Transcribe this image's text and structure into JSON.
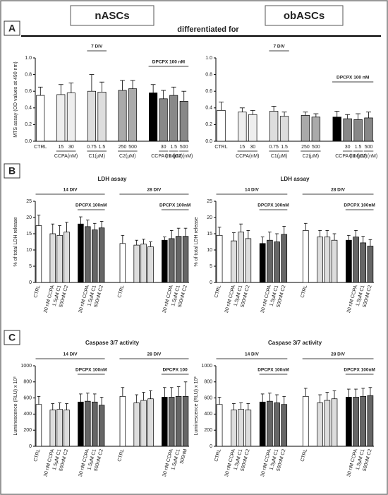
{
  "header": {
    "left": "nASCs",
    "right": "obASCs",
    "subtitle": "differentiated for"
  },
  "panels": [
    "A",
    "B",
    "C"
  ],
  "chart_data": [
    {
      "type": "bar",
      "ylabel": "MTS assay (OD values at 490 nm)",
      "categories": [
        "CTRL",
        null,
        "15",
        "30",
        null,
        "0.75",
        "1.5",
        null,
        "250",
        "500",
        null,
        null,
        "30",
        "1.5",
        "500"
      ],
      "values": [
        0.55,
        null,
        0.56,
        0.58,
        null,
        0.6,
        0.59,
        null,
        0.61,
        0.63,
        null,
        0.58,
        0.51,
        0.55,
        0.48
      ],
      "errors": [
        0.1,
        null,
        0.12,
        0.12,
        null,
        0.2,
        0.12,
        null,
        0.12,
        0.1,
        null,
        0.1,
        0.1,
        0.1,
        0.12
      ],
      "colors": [
        "#ffffff",
        null,
        "#eeeeee",
        "#eeeeee",
        null,
        "#dddddd",
        "#dddddd",
        null,
        "#aaaaaa",
        "#aaaaaa",
        null,
        "#000000",
        "#888888",
        "#888888",
        "#888888"
      ],
      "groups": [
        {
          "label": "CCPA(nM)",
          "span": [
            2,
            3
          ]
        },
        {
          "label": "C1(µM)",
          "span": [
            5,
            6
          ]
        },
        {
          "label": "C2(µM)",
          "span": [
            8,
            9
          ]
        },
        {
          "label": "CCPA (nM)",
          "span": [
            12,
            12
          ]
        },
        {
          "label": "C1 (µM)",
          "span": [
            13,
            13
          ]
        },
        {
          "label": "C2 (nM)",
          "span": [
            14,
            14
          ]
        }
      ],
      "brackets": [
        [
          {
            "label": "7 DIV",
            "span": [
              5,
              6
            ]
          }
        ],
        [
          {
            "label": "DPCPX 100 nM",
            "span": [
              11,
              14
            ]
          }
        ]
      ],
      "ylim": [
        0,
        1
      ],
      "yticks": [
        {
          "value": 0,
          "label": "0.0"
        },
        0.2,
        0.4,
        0.6,
        0.8,
        {
          "value": 1,
          "label": "1.0"
        }
      ]
    },
    {
      "type": "bar",
      "categories": [
        "CTRL",
        null,
        "15",
        "30",
        null,
        "0.75",
        "1.5",
        null,
        "250",
        "500",
        null,
        null,
        "30",
        "1.5",
        "500"
      ],
      "values": [
        0.37,
        null,
        0.35,
        0.32,
        null,
        0.36,
        0.3,
        null,
        0.31,
        0.29,
        null,
        0.29,
        0.27,
        0.26,
        0.28
      ],
      "errors": [
        0.1,
        null,
        0.05,
        0.05,
        null,
        0.06,
        0.05,
        null,
        0.04,
        0.04,
        null,
        0.07,
        0.05,
        0.07,
        0.07
      ],
      "colors": [
        "#ffffff",
        null,
        "#eeeeee",
        "#eeeeee",
        null,
        "#dddddd",
        "#dddddd",
        null,
        "#aaaaaa",
        "#aaaaaa",
        null,
        "#000000",
        "#888888",
        "#888888",
        "#888888"
      ],
      "groups": [
        {
          "label": "CCPA(nM)",
          "span": [
            2,
            3
          ]
        },
        {
          "label": "C1(µM)",
          "span": [
            5,
            6
          ]
        },
        {
          "label": "C2(µM)",
          "span": [
            8,
            9
          ]
        },
        {
          "label": "CCPA (nM)",
          "span": [
            12,
            12
          ]
        },
        {
          "label": "C1 (µM)",
          "span": [
            13,
            13
          ]
        },
        {
          "label": "C2 (nM)",
          "span": [
            14,
            14
          ]
        }
      ],
      "brackets": [
        [
          {
            "label": "7 DIV",
            "span": [
              5,
              6
            ]
          }
        ],
        [],
        [
          {
            "label": "DPCPX 100 nM",
            "span": [
              11,
              14
            ]
          }
        ]
      ],
      "ylim": [
        0,
        1
      ],
      "yticks": [
        {
          "value": 0,
          "label": "0.0"
        },
        0.2,
        0.4,
        0.6,
        0.8,
        {
          "value": 1,
          "label": "1.0"
        }
      ]
    },
    {
      "type": "bar",
      "title": "LDH assay",
      "ylabel": "% of total LDH release",
      "rotate_labels": true,
      "categories": [
        "CTRL",
        null,
        "30 nM CCPA",
        "1.5µM C1",
        "500nM C2",
        null,
        null,
        "30 nM CCPA",
        "1.5µM C1",
        "500nM C2",
        null,
        null,
        "CTRL",
        null,
        null,
        null,
        null,
        null,
        null,
        "30 nM CCPA",
        "1.5µM C1",
        "500nM C2"
      ],
      "values": [
        17.5,
        null,
        15,
        14.5,
        15.5,
        null,
        18,
        17.2,
        16.2,
        16.8,
        null,
        null,
        12,
        null,
        11.5,
        11.8,
        11,
        null,
        13,
        13.5,
        14.2,
        14.2
      ],
      "errors": [
        3.2,
        null,
        3,
        3,
        3,
        null,
        2.2,
        2,
        2,
        2,
        null,
        null,
        2.5,
        null,
        1.5,
        1.5,
        1.5,
        null,
        1,
        2.5,
        2.5,
        2.5
      ],
      "colors": [
        "#ffffff",
        null,
        "#dddddd",
        "#dddddd",
        "#dddddd",
        null,
        "#000000",
        "#666666",
        "#666666",
        "#666666",
        null,
        null,
        "#ffffff",
        null,
        "#dddddd",
        "#dddddd",
        "#dddddd",
        null,
        "#000000",
        "#666666",
        "#666666",
        "#666666"
      ],
      "brackets": [
        [
          {
            "label": "14 DIV",
            "span": [
              0,
              9
            ]
          },
          {
            "label": "28 DIV",
            "span": [
              12,
              21
            ]
          }
        ],
        [
          {
            "label": "DPCPX 100nM",
            "span": [
              6,
              9
            ]
          },
          {
            "label": "DPCPX 100nM",
            "span": [
              18,
              21
            ]
          }
        ]
      ],
      "ylim": [
        0,
        25
      ],
      "yticks": [
        0,
        5,
        10,
        15,
        20,
        25
      ]
    },
    {
      "type": "bar",
      "title": "LDH assay",
      "ylabel": "% of total LDH release",
      "rotate_labels": true,
      "categories": [
        "CTRL",
        null,
        "30 nM CCPA",
        "1.5µM C1",
        "500nM C2",
        null,
        null,
        "30 nM CCPA",
        "1.5µM C1",
        "500nM C2",
        null,
        null,
        "CTRL",
        null,
        null,
        null,
        null,
        null,
        null,
        "30 nM CCPA",
        "1.5µM C1",
        "500nM C2"
      ],
      "values": [
        14.5,
        null,
        12.8,
        15.5,
        13.5,
        null,
        12,
        13,
        12.5,
        14.8,
        null,
        null,
        16,
        null,
        14,
        14,
        13,
        null,
        13,
        14,
        12.2,
        11.2
      ],
      "errors": [
        2.5,
        null,
        2.5,
        2.5,
        2.5,
        null,
        2,
        2.5,
        2.5,
        2.5,
        null,
        null,
        2.2,
        null,
        2,
        2,
        2,
        null,
        1.5,
        2,
        2,
        2
      ],
      "colors": [
        "#ffffff",
        null,
        "#dddddd",
        "#dddddd",
        "#dddddd",
        null,
        "#000000",
        "#666666",
        "#666666",
        "#666666",
        null,
        null,
        "#ffffff",
        null,
        "#dddddd",
        "#dddddd",
        "#dddddd",
        null,
        "#000000",
        "#666666",
        "#666666",
        "#666666"
      ],
      "brackets": [
        [
          {
            "label": "14 DIV",
            "span": [
              0,
              9
            ]
          },
          {
            "label": "28 DIV",
            "span": [
              12,
              21
            ]
          }
        ],
        [
          {
            "label": "DPCPX 100nM",
            "span": [
              6,
              9
            ]
          },
          {
            "label": "DPCPX 100nM",
            "span": [
              18,
              21
            ]
          }
        ]
      ],
      "ylim": [
        0,
        25
      ],
      "yticks": [
        0,
        5,
        10,
        15,
        20,
        25
      ]
    },
    {
      "type": "bar",
      "title": "Caspase 3/7 activity",
      "ylabel": "Luminescence (RLU) x 10³",
      "rotate_labels": true,
      "categories": [
        "CTRL",
        null,
        "30 nM CCPA",
        "1.5µM C1",
        "500nM C2",
        null,
        null,
        "30 nM CCPA",
        "1.5µM C1",
        "500nM C2",
        null,
        null,
        "CTRL",
        null,
        null,
        null,
        null,
        null,
        null,
        "30 nM CCPA",
        "1.5µM C1",
        "500nM"
      ],
      "values": [
        520,
        null,
        450,
        460,
        450,
        null,
        550,
        560,
        550,
        510,
        null,
        null,
        620,
        null,
        540,
        570,
        590,
        null,
        610,
        610,
        620,
        620
      ],
      "errors": [
        100,
        null,
        80,
        80,
        80,
        null,
        100,
        100,
        100,
        100,
        null,
        null,
        110,
        null,
        100,
        100,
        100,
        null,
        120,
        120,
        120,
        180
      ],
      "colors": [
        "#ffffff",
        null,
        "#dddddd",
        "#dddddd",
        "#dddddd",
        null,
        "#000000",
        "#666666",
        "#666666",
        "#666666",
        null,
        null,
        "#ffffff",
        null,
        "#dddddd",
        "#dddddd",
        "#dddddd",
        null,
        "#000000",
        "#666666",
        "#666666",
        "#666666"
      ],
      "brackets": [
        [
          {
            "label": "14 DIV",
            "span": [
              0,
              9
            ]
          },
          {
            "label": "28 DIV",
            "span": [
              12,
              21
            ]
          }
        ],
        [
          {
            "label": "DPCPX 100nM",
            "span": [
              6,
              9
            ]
          },
          {
            "label": "DPCPX 100",
            "span": [
              18,
              21
            ]
          }
        ]
      ],
      "ylim": [
        0,
        1000
      ],
      "yticks": [
        0,
        200,
        400,
        600,
        800,
        1000
      ]
    },
    {
      "type": "bar",
      "title": "Caspase 3/7 activity",
      "ylabel": "Luminescence (RLU) x 10³",
      "rotate_labels": true,
      "categories": [
        "CTRL",
        null,
        "30 nM CCPA",
        "1.5µM C1",
        "500nM C2",
        null,
        null,
        "30 nM CCPA",
        "1.5µM C1",
        "500nM C2",
        null,
        null,
        "CTRL",
        null,
        null,
        null,
        null,
        null,
        null,
        "30 nM CCPA",
        "1.5µM C1",
        "500nM C2"
      ],
      "values": [
        520,
        null,
        450,
        460,
        450,
        null,
        550,
        560,
        540,
        520,
        null,
        null,
        620,
        null,
        540,
        570,
        590,
        null,
        610,
        610,
        620,
        630
      ],
      "errors": [
        90,
        null,
        80,
        80,
        80,
        null,
        100,
        100,
        100,
        100,
        null,
        null,
        100,
        null,
        100,
        100,
        100,
        null,
        100,
        100,
        100,
        100
      ],
      "colors": [
        "#ffffff",
        null,
        "#dddddd",
        "#dddddd",
        "#dddddd",
        null,
        "#000000",
        "#666666",
        "#666666",
        "#666666",
        null,
        null,
        "#ffffff",
        null,
        "#dddddd",
        "#dddddd",
        "#dddddd",
        null,
        "#000000",
        "#666666",
        "#666666",
        "#666666"
      ],
      "brackets": [
        [
          {
            "label": "14 DIV",
            "span": [
              0,
              9
            ]
          },
          {
            "label": "28 DIV",
            "span": [
              12,
              21
            ]
          }
        ],
        [
          {
            "label": "DPCPX 100nM",
            "span": [
              6,
              9
            ]
          },
          {
            "label": "DPCPX 100nM",
            "span": [
              18,
              21
            ]
          }
        ]
      ],
      "ylim": [
        0,
        1000
      ],
      "yticks": [
        0,
        200,
        400,
        600,
        800,
        1000
      ]
    }
  ]
}
